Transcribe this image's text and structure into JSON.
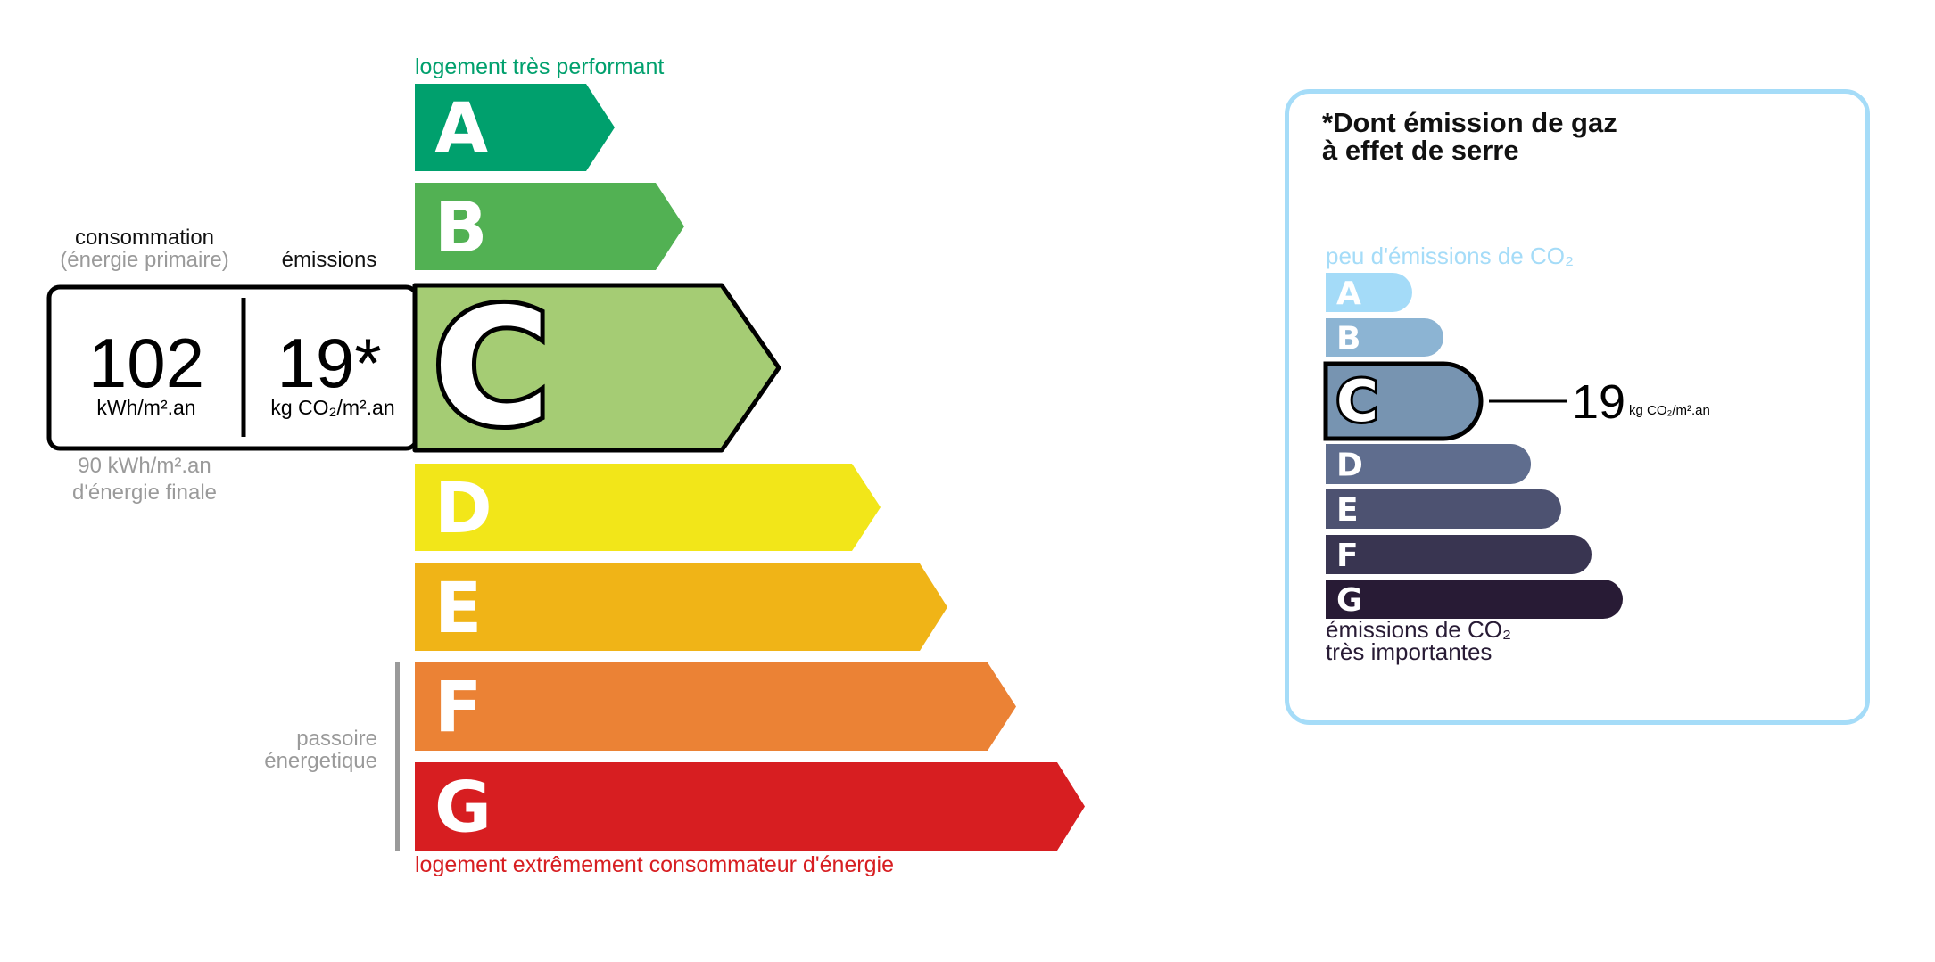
{
  "energy": {
    "top_label": "logement très performant",
    "bottom_label": "logement extrêmement consommateur d'énergie",
    "top_label_color": "#00a06d",
    "bottom_label_color": "#d71e21",
    "classes": [
      {
        "letter": "A",
        "color": "#00a06d"
      },
      {
        "letter": "B",
        "color": "#52b153"
      },
      {
        "letter": "C",
        "color": "#a5cc74"
      },
      {
        "letter": "D",
        "color": "#f2e619"
      },
      {
        "letter": "E",
        "color": "#f0b417"
      },
      {
        "letter": "F",
        "color": "#eb8235"
      },
      {
        "letter": "G",
        "color": "#d71e21"
      }
    ],
    "current_class": "C",
    "consumption_title": "consommation",
    "consumption_subtitle": "(énergie primaire)",
    "emissions_title": "émissions",
    "consumption_value": "102",
    "consumption_unit": "kWh/m².an",
    "emissions_value": "19*",
    "emissions_unit": "kg CO₂/m².an",
    "final_energy_value": "90 kWh/m².an",
    "final_energy_label": "d'énergie finale",
    "passoire_line1": "passoire",
    "passoire_line2": "énergetique"
  },
  "ghg": {
    "title_line1": "*Dont émission de gaz",
    "title_line2": "à effet de serre",
    "top_label": "peu d'émissions de CO₂",
    "bottom_line1": "émissions de CO₂",
    "bottom_line2": "très importantes",
    "border_color": "#a5dcf8",
    "classes": [
      {
        "letter": "A",
        "color": "#a4dbf8"
      },
      {
        "letter": "B",
        "color": "#8cb4d3"
      },
      {
        "letter": "C",
        "color": "#7794b1"
      },
      {
        "letter": "D",
        "color": "#5f6d8e"
      },
      {
        "letter": "E",
        "color": "#4d5271"
      },
      {
        "letter": "F",
        "color": "#393551"
      },
      {
        "letter": "G",
        "color": "#281b35"
      }
    ],
    "current_class": "C",
    "value": "19",
    "unit": "kg CO₂/m².an"
  }
}
